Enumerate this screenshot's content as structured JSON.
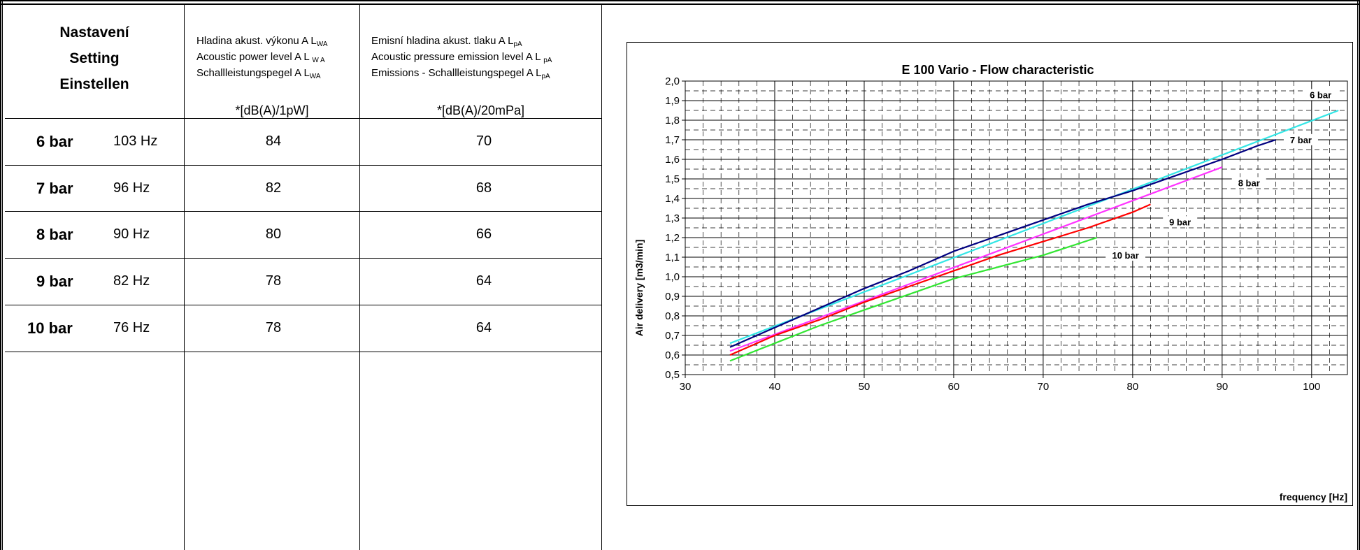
{
  "table": {
    "setting_header": [
      "Nastavení",
      "Setting",
      "Einstellen"
    ],
    "lwa_header": {
      "lines": [
        {
          "text": "Hladina akust. výkonu  A L",
          "sub": "WA"
        },
        {
          "text": "Acoustic power level  A L ",
          "sub": "W A"
        },
        {
          "text": "Schallleistungspegel  A L",
          "sub": "WA"
        }
      ],
      "unit": "*[dB(A)/1pW]"
    },
    "lpa_header": {
      "lines": [
        {
          "text": "Emisní hladina akust. tlaku A L",
          "sub": "pA"
        },
        {
          "text": "Acoustic pressure emission level A L ",
          "sub": "pA"
        },
        {
          "text": "Emissions - Schallleistungspegel  A L",
          "sub": "pA"
        }
      ],
      "unit": "*[dB(A)/20mPa]"
    },
    "rows": [
      {
        "pressure": "6 bar",
        "frequency": "103 Hz",
        "lwa": "84",
        "lpa": "70"
      },
      {
        "pressure": "7 bar",
        "frequency": "96 Hz",
        "lwa": "82",
        "lpa": "68"
      },
      {
        "pressure": "8 bar",
        "frequency": "90 Hz",
        "lwa": "80",
        "lpa": "66"
      },
      {
        "pressure": "9 bar",
        "frequency": "82 Hz",
        "lwa": "78",
        "lpa": "64"
      },
      {
        "pressure": "10 bar",
        "frequency": "76 Hz",
        "lwa": "78",
        "lpa": "64"
      }
    ]
  },
  "chart_data": {
    "type": "line",
    "title": "E 100 Vario - Flow characteristic",
    "xlabel": "frequency [Hz]",
    "ylabel": "Air delivery [m3/min]",
    "xlim": [
      30,
      104
    ],
    "ylim": [
      0.5,
      2.0
    ],
    "x_ticks": [
      "30",
      "40",
      "50",
      "60",
      "70",
      "80",
      "90",
      "100"
    ],
    "y_ticks": [
      "0,5",
      "0,6",
      "0,7",
      "0,8",
      "0,9",
      "1,0",
      "1,1",
      "1,2",
      "1,3",
      "1,4",
      "1,5",
      "1,6",
      "1,7",
      "1,8",
      "1,9",
      "2,0"
    ],
    "grid": true,
    "series": [
      {
        "name": "6 bar",
        "color": "#33e6e6",
        "x": [
          35,
          103
        ],
        "y": [
          0.66,
          1.85
        ]
      },
      {
        "name": "7 bar",
        "color": "#000080",
        "x": [
          35,
          40,
          45,
          50,
          55,
          60,
          65,
          70,
          75,
          80,
          85,
          90,
          94,
          96
        ],
        "y": [
          0.64,
          0.74,
          0.84,
          0.94,
          1.03,
          1.13,
          1.21,
          1.29,
          1.37,
          1.44,
          1.52,
          1.6,
          1.67,
          1.7
        ]
      },
      {
        "name": "8 bar",
        "color": "#ff33ff",
        "x": [
          35,
          90
        ],
        "y": [
          0.62,
          1.56
        ]
      },
      {
        "name": "9 bar",
        "color": "#ff0000",
        "x": [
          35,
          40,
          45,
          50,
          55,
          60,
          65,
          70,
          75,
          80,
          82
        ],
        "y": [
          0.6,
          0.7,
          0.78,
          0.87,
          0.95,
          1.03,
          1.11,
          1.18,
          1.25,
          1.33,
          1.37
        ]
      },
      {
        "name": "10 bar",
        "color": "#33e633",
        "x": [
          35,
          40,
          45,
          50,
          55,
          60,
          65,
          70,
          76
        ],
        "y": [
          0.57,
          0.66,
          0.75,
          0.83,
          0.91,
          0.99,
          1.05,
          1.11,
          1.2
        ]
      }
    ]
  }
}
